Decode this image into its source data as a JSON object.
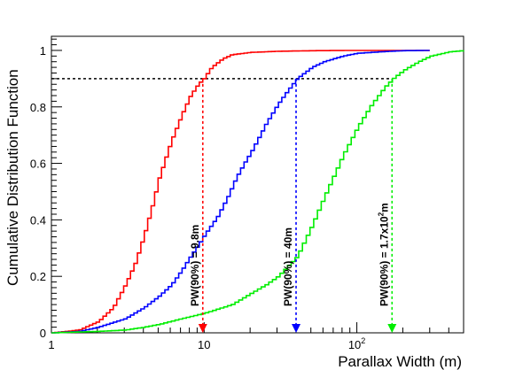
{
  "chart_data": {
    "type": "line",
    "xlabel": "Parallax Width (m)",
    "ylabel": "Cumulative Distribution Function",
    "xscale": "log",
    "xlim": [
      1,
      500
    ],
    "ylim": [
      0,
      1.05
    ],
    "y_ticks": [
      0,
      0.2,
      0.4,
      0.6,
      0.8,
      1
    ],
    "y_tick_labels": [
      "0",
      "0.2",
      "0.4",
      "0.6",
      "0.8",
      "1"
    ],
    "x_ticks": [
      1,
      10,
      100
    ],
    "x_tick_labels": [
      {
        "base": "1",
        "exp": ""
      },
      {
        "base": "10",
        "exp": ""
      },
      {
        "base": "10",
        "exp": "2"
      }
    ],
    "threshold": 0.9,
    "series": [
      {
        "color": "#ff0000",
        "x": [
          1,
          1.5,
          2,
          2.5,
          3,
          3.5,
          4,
          4.5,
          5,
          6,
          7,
          8,
          9,
          9.8,
          11,
          13,
          15,
          20,
          30,
          50,
          100,
          200,
          300
        ],
        "y": [
          0,
          0.01,
          0.04,
          0.09,
          0.17,
          0.25,
          0.35,
          0.45,
          0.55,
          0.68,
          0.77,
          0.84,
          0.88,
          0.9,
          0.94,
          0.97,
          0.985,
          0.993,
          0.997,
          0.999,
          1,
          1,
          1
        ]
      },
      {
        "color": "#0000ff",
        "x": [
          1,
          1.5,
          2,
          3,
          4,
          5,
          6,
          7,
          8,
          9,
          10,
          12,
          14,
          16,
          18,
          20,
          25,
          30,
          35,
          40,
          50,
          60,
          80,
          100,
          150,
          200,
          300
        ],
        "y": [
          0,
          0.005,
          0.02,
          0.05,
          0.09,
          0.13,
          0.17,
          0.22,
          0.27,
          0.31,
          0.35,
          0.41,
          0.48,
          0.55,
          0.6,
          0.64,
          0.74,
          0.81,
          0.86,
          0.9,
          0.94,
          0.96,
          0.98,
          0.99,
          0.996,
          0.999,
          1
        ]
      },
      {
        "color": "#00ee00",
        "x": [
          1,
          2,
          3,
          4,
          5,
          7,
          10,
          15,
          20,
          25,
          30,
          40,
          50,
          60,
          70,
          80,
          100,
          120,
          150,
          170,
          200,
          250,
          300,
          400,
          500
        ],
        "y": [
          0,
          0.005,
          0.01,
          0.02,
          0.03,
          0.05,
          0.07,
          0.1,
          0.14,
          0.17,
          0.2,
          0.27,
          0.38,
          0.48,
          0.56,
          0.63,
          0.73,
          0.8,
          0.87,
          0.9,
          0.93,
          0.96,
          0.98,
          0.995,
          1
        ]
      }
    ],
    "markers": [
      {
        "x": 9.8,
        "color": "#ff0000",
        "label": "PW(90%) = 9.8m"
      },
      {
        "x": 40,
        "color": "#0000ff",
        "label": "PW(90%) = 40m"
      },
      {
        "x": 170,
        "color": "#00ee00",
        "label": "PW(90%) = 1.7x10",
        "label_sup": "2",
        "label_unit": "m"
      }
    ]
  }
}
